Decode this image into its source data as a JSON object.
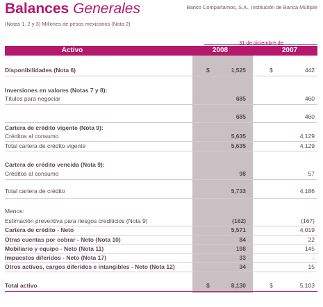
{
  "header": {
    "title_bold": "Balances",
    "title_light": "Generales",
    "subtitle": "(Notas 1, 2 y 3) Millones de pesos mexicanos (Nota 2)",
    "company": "Banco Compartamos, S.A., Institución de Banca Múltiple",
    "date_label": "31 de diciembre de"
  },
  "columns": {
    "label": "Activo",
    "year1": "2008",
    "year2": "2007"
  },
  "rows": [
    {
      "label": "Disponibilidades (Nota 6)",
      "cur2008": "$",
      "v2008": "1,525",
      "cur2007": "$",
      "v2007": "442"
    },
    {
      "label": "Inversiones en valores (Notas 7 y 8):",
      "v2008": "",
      "v2007": ""
    },
    {
      "label": "Títulos para negociar",
      "v2008": "685",
      "v2007": "460"
    },
    {
      "label": "",
      "v2008": "685",
      "v2007": "460"
    },
    {
      "label": "Cartera de crédito vigente (Nota 9):",
      "v2008": "",
      "v2007": ""
    },
    {
      "label": "Créditos al consumo",
      "v2008": "5,635",
      "v2007": "4,129"
    },
    {
      "label": "Total cartera de crédito vigente",
      "v2008": "5,635",
      "v2007": "4,129"
    },
    {
      "label": "Cartera de crédito vencida (Nota 9):",
      "v2008": "",
      "v2007": ""
    },
    {
      "label": "Créditos al consumo",
      "v2008": "98",
      "v2007": "57"
    },
    {
      "label": "Total cartera de crédito",
      "v2008": "5,733",
      "v2007": "4,186"
    },
    {
      "label": "Menos:",
      "v2008": "",
      "v2007": ""
    },
    {
      "label": "Estimación preventiva para riesgos crediticios (Nota 9)",
      "v2008": "(162)",
      "v2007": "(167)"
    },
    {
      "label": "Cartera de crédito - Neto",
      "v2008": "5,571",
      "v2007": "4,019"
    },
    {
      "label": "Otras cuentas por cobrar - Neto (Nota 10)",
      "v2008": "84",
      "v2007": "22"
    },
    {
      "label": "Mobiliario y equipo - Neto (Nota 11)",
      "v2008": "198",
      "v2007": "145"
    },
    {
      "label": "Impuestos diferidos - Neto (Nota 17)",
      "v2008": "33",
      "v2007": "-"
    },
    {
      "label": "Otros activos, cargos diferidos e intangibles - Neto (Nota 12)",
      "v2008": "34",
      "v2007": "15"
    },
    {
      "label": "Total activo",
      "cur2008": "$",
      "v2008": "8,130",
      "cur2007": "$",
      "v2007": "5,103"
    }
  ]
}
